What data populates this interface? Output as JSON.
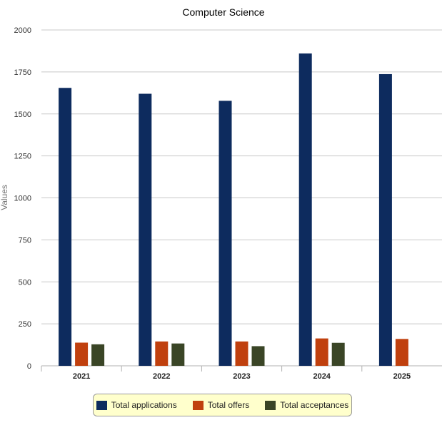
{
  "chart_data": {
    "type": "bar",
    "title": "Computer Science",
    "xlabel": "",
    "ylabel": "Values",
    "ylim": [
      0,
      2000
    ],
    "yticks": [
      0,
      250,
      500,
      750,
      1000,
      1250,
      1500,
      1750,
      2000
    ],
    "categories": [
      "2021",
      "2022",
      "2023",
      "2024",
      "2025"
    ],
    "series": [
      {
        "name": "Total applications",
        "color": "#0d2b5e",
        "values": [
          1655,
          1620,
          1578,
          1860,
          1737
        ]
      },
      {
        "name": "Total offers",
        "color": "#c0400e",
        "values": [
          138,
          145,
          145,
          163,
          160
        ]
      },
      {
        "name": "Total acceptances",
        "color": "#3a4526",
        "values": [
          128,
          133,
          117,
          137,
          null
        ]
      }
    ],
    "grid": true,
    "legend_position": "bottom"
  }
}
